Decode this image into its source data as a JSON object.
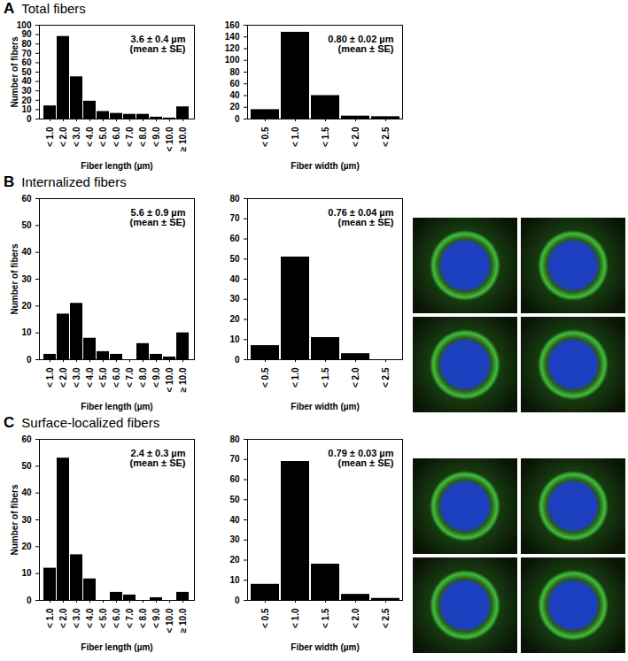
{
  "chart_data": [
    {
      "type": "bar",
      "panel": "A",
      "title": "Total fibers",
      "xlabel": "Fiber length (µm)",
      "ylabel": "Number of fibers",
      "categories": [
        "< 1.0",
        "< 2.0",
        "< 3.0",
        "< 4.0",
        "< 5.0",
        "< 6.0",
        "< 7.0",
        "< 8.0",
        "< 9.0",
        "< 10.0",
        "≥ 10.0"
      ],
      "values": [
        14,
        88,
        45,
        19,
        8,
        6,
        5,
        5,
        2,
        1,
        13
      ],
      "color": "#000000",
      "ylim": [
        0,
        100
      ],
      "yticks": [
        0,
        10,
        20,
        30,
        40,
        50,
        60,
        70,
        80,
        90,
        100
      ],
      "annotations": [
        "3.6 ± 0.4 µm",
        "(mean ± SE)"
      ]
    },
    {
      "type": "bar",
      "xlabel": "Fiber width (µm)",
      "categories": [
        "< 0.5",
        "< 1.0",
        "< 1.5",
        "< 2.0",
        "< 2.5"
      ],
      "values": [
        16,
        148,
        40,
        5,
        4
      ],
      "color": "#000000",
      "ylim": [
        0,
        160
      ],
      "yticks": [
        0,
        20,
        40,
        60,
        80,
        100,
        120,
        140,
        160
      ],
      "annotations": [
        "0.80 ± 0.02 µm",
        "(mean ± SE)"
      ]
    },
    {
      "type": "bar",
      "panel": "B",
      "title": "Internalized fibers",
      "xlabel": "Fiber length (µm)",
      "ylabel": "Number of fibers",
      "categories": [
        "< 1.0",
        "< 2.0",
        "< 3.0",
        "< 4.0",
        "< 5.0",
        "< 6.0",
        "< 7.0",
        "< 8.0",
        "< 9.0",
        "< 10.0",
        "≥ 10.0"
      ],
      "values": [
        2,
        17,
        21,
        8,
        3,
        2,
        0,
        6,
        2,
        1,
        10
      ],
      "color": "#000000",
      "ylim": [
        0,
        60
      ],
      "yticks": [
        0,
        10,
        20,
        30,
        40,
        50,
        60
      ],
      "annotations": [
        "5.6 ± 0.9 µm",
        "(mean ± SE)"
      ]
    },
    {
      "type": "bar",
      "xlabel": "Fiber width (µm)",
      "categories": [
        "< 0.5",
        "< 1.0",
        "< 1.5",
        "< 2.0",
        "< 2.5"
      ],
      "values": [
        7,
        51,
        11,
        3,
        0
      ],
      "color": "#000000",
      "ylim": [
        0,
        80
      ],
      "yticks": [
        0,
        10,
        20,
        30,
        40,
        50,
        60,
        70,
        80
      ],
      "annotations": [
        "0.76 ± 0.04 µm",
        "(mean ± SE)"
      ]
    },
    {
      "type": "bar",
      "panel": "C",
      "title": "Surface-localized fibers",
      "xlabel": "Fiber length (µm)",
      "ylabel": "Number of fibers",
      "categories": [
        "< 1.0",
        "< 2.0",
        "< 3.0",
        "< 4.0",
        "< 5.0",
        "< 6.0",
        "< 7.0",
        "< 8.0",
        "< 9.0",
        "< 10.0",
        "≥ 10.0"
      ],
      "values": [
        12,
        53,
        17,
        8,
        0,
        3,
        2,
        0,
        1,
        0,
        3
      ],
      "color": "#000000",
      "ylim": [
        0,
        60
      ],
      "yticks": [
        0,
        10,
        20,
        30,
        40,
        50,
        60
      ],
      "annotations": [
        "2.4 ± 0.3 µm",
        "(mean ± SE)"
      ]
    },
    {
      "type": "bar",
      "xlabel": "Fiber width (µm)",
      "categories": [
        "< 0.5",
        "< 1.0",
        "< 1.5",
        "< 2.0",
        "< 2.5"
      ],
      "values": [
        8,
        69,
        18,
        3,
        1
      ],
      "color": "#000000",
      "ylim": [
        0,
        80
      ],
      "yticks": [
        0,
        10,
        20,
        30,
        40,
        50,
        60,
        70,
        80
      ],
      "annotations": [
        "0.79 ± 0.03 µm",
        "(mean ± SE)"
      ]
    }
  ]
}
